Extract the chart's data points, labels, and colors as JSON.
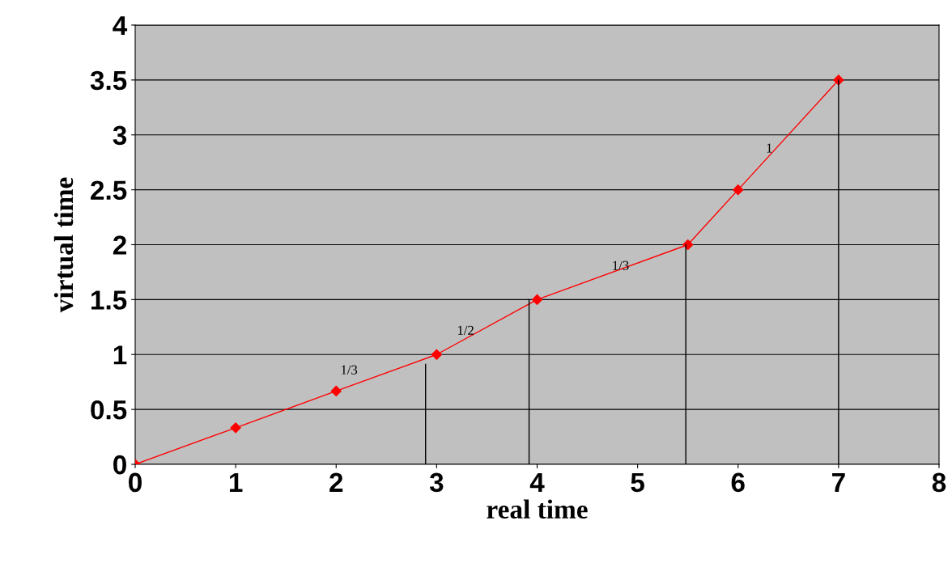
{
  "chart_data": {
    "type": "line",
    "xlabel": "real time",
    "ylabel": "virtual time",
    "xlim": [
      0,
      8
    ],
    "ylim": [
      0,
      4
    ],
    "xticks": [
      0,
      1,
      2,
      3,
      4,
      5,
      6,
      7,
      8
    ],
    "yticks": [
      0,
      0.5,
      1,
      1.5,
      2,
      2.5,
      3,
      3.5,
      4
    ],
    "grid": "y",
    "legend": false,
    "series": [
      {
        "color": "#000000",
        "x": [
          2.89,
          2.89
        ],
        "values": [
          0,
          0.91
        ],
        "marker": "none"
      },
      {
        "color": "#000000",
        "x": [
          3.92,
          3.92
        ],
        "values": [
          0,
          1.5
        ],
        "marker": "none"
      },
      {
        "color": "#000000",
        "x": [
          5.48,
          5.48
        ],
        "values": [
          0,
          2.0
        ],
        "marker": "none"
      },
      {
        "color": "#000000",
        "x": [
          7,
          7
        ],
        "values": [
          0,
          3.5
        ],
        "marker": "none"
      },
      {
        "color": "#ff0000",
        "x": [
          0,
          1,
          2,
          3,
          4,
          5.5,
          6,
          7
        ],
        "values": [
          0,
          0.333,
          0.667,
          1,
          1.5,
          2,
          2.5,
          3.5
        ],
        "marker": "diamond"
      }
    ],
    "annotations": [
      "1/3",
      "1/2",
      {
        "text": "1/3",
        "x": 4.83,
        "y": 1.8
      },
      {
        "text": "1",
        "x": 6.31,
        "y": 2.87
      }
    ]
  }
}
